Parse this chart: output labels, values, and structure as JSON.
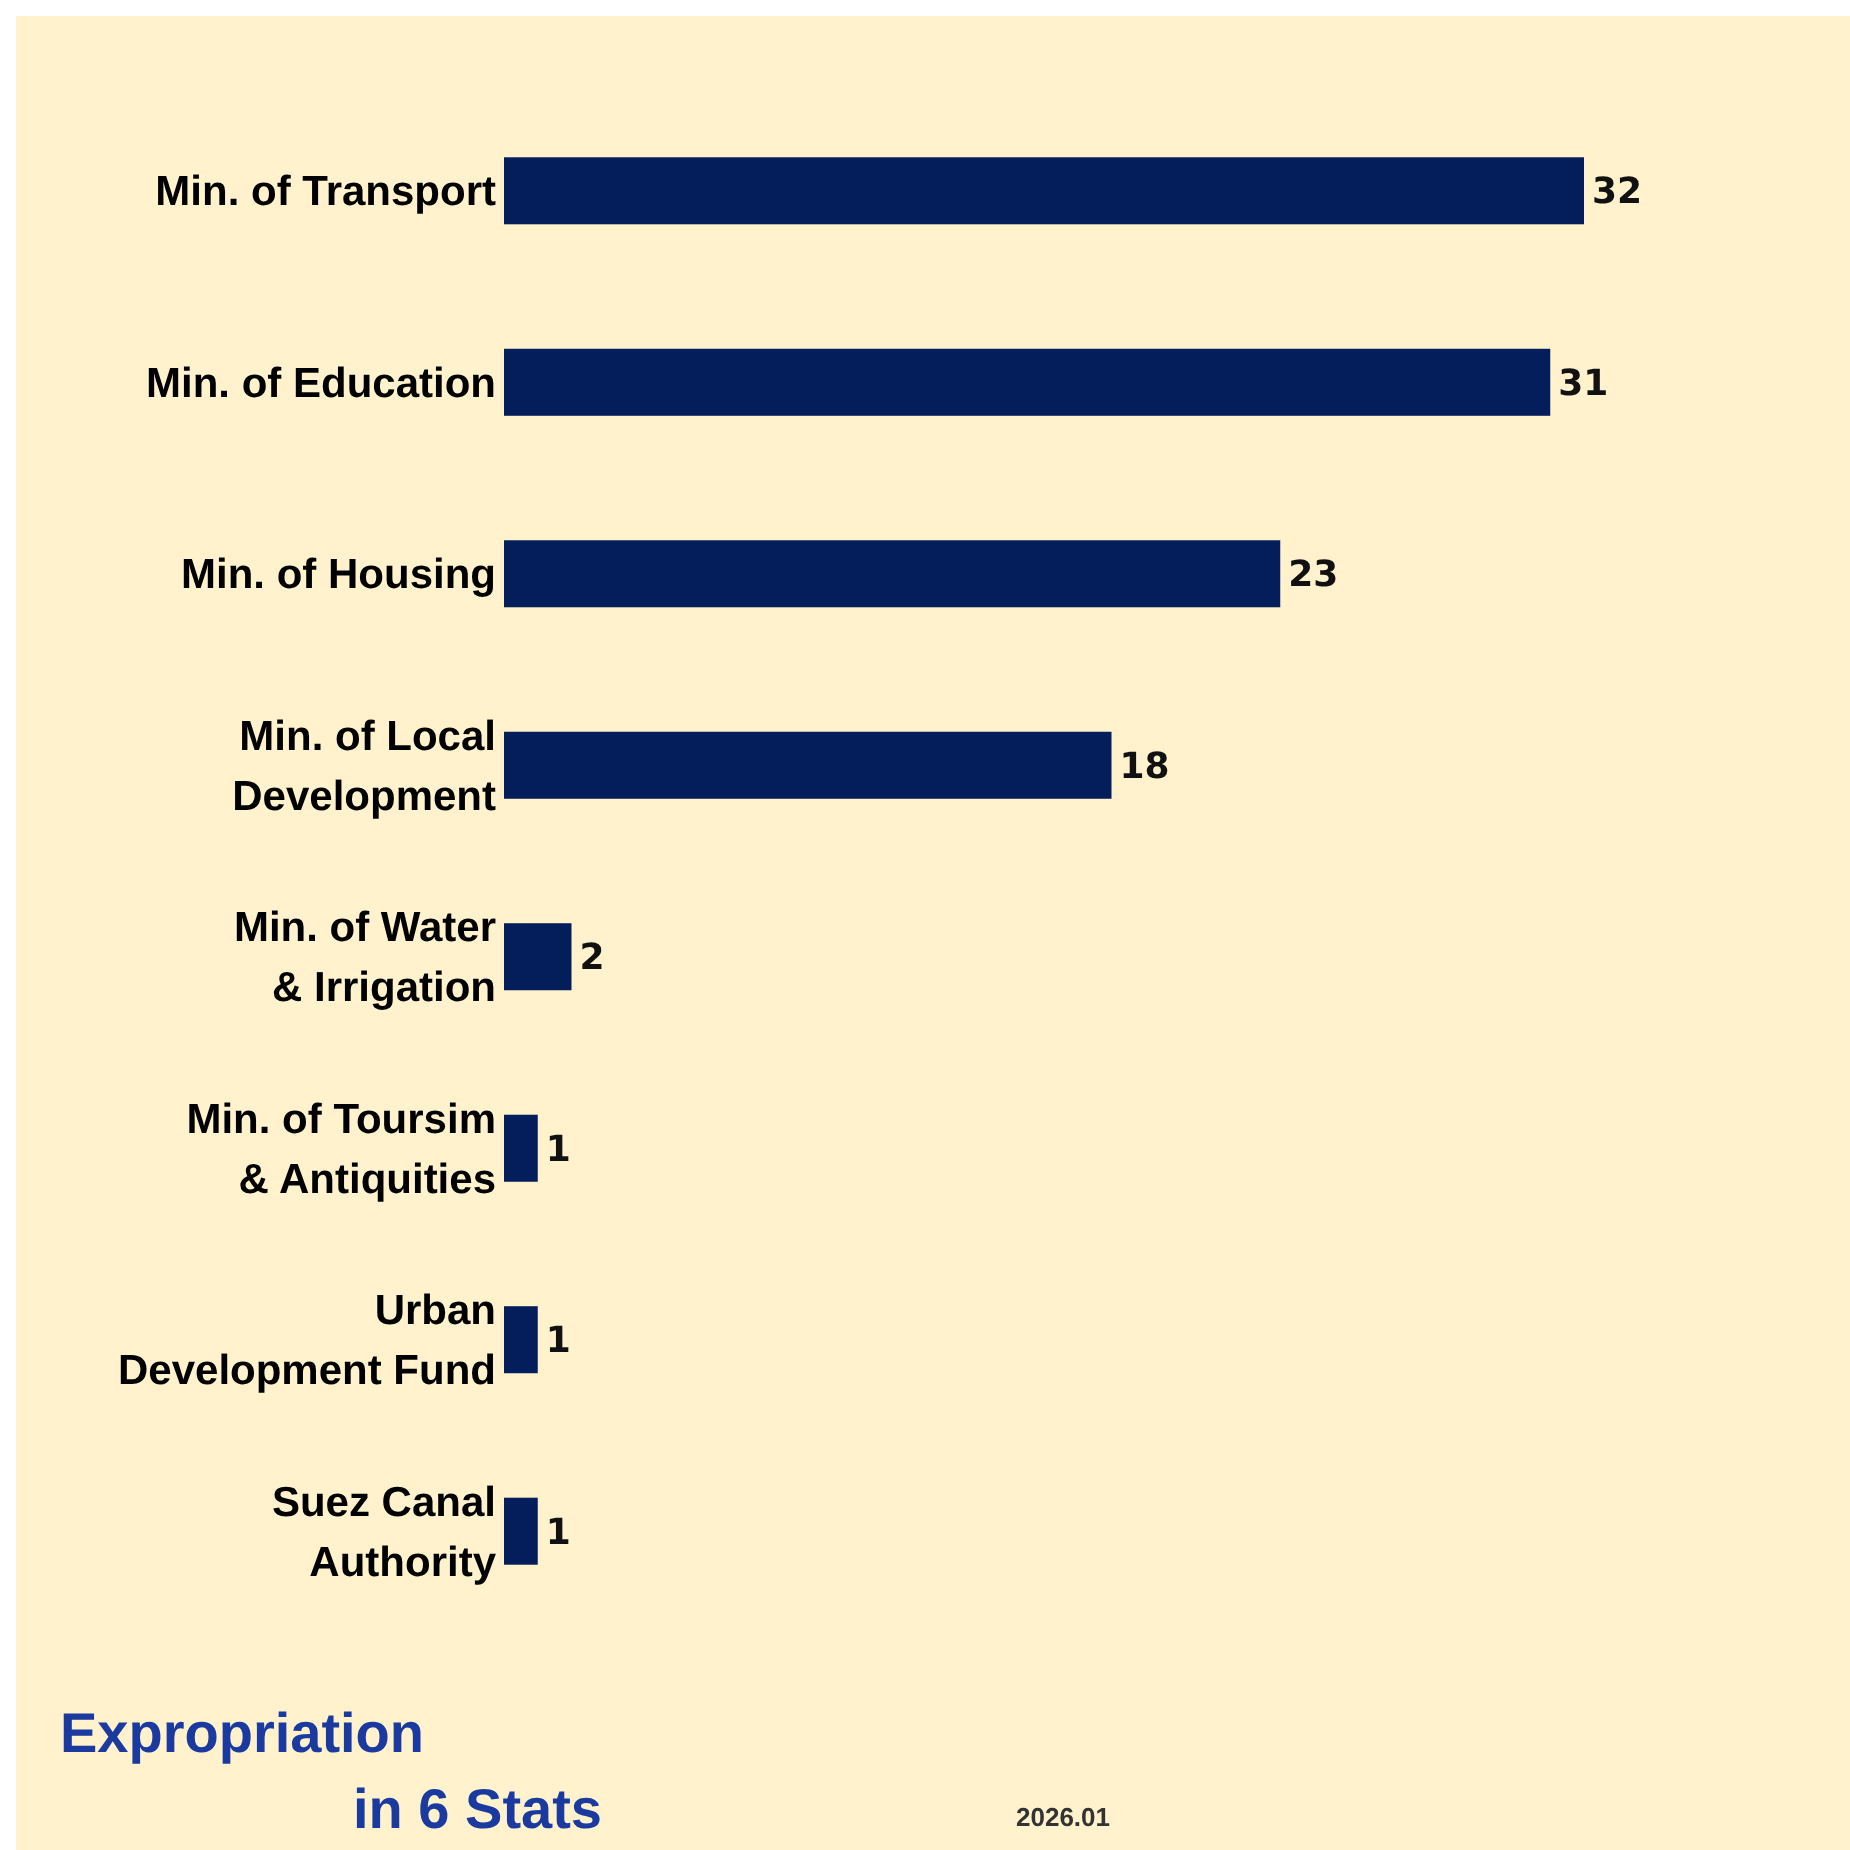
{
  "chart_data": {
    "type": "bar",
    "orientation": "horizontal",
    "title": "Expropriation in 6 Stats",
    "categories": [
      "Min. of Transport",
      "Min. of Education",
      "Min. of Housing",
      "Min. of Local Development",
      "Min. of Water & Irrigation",
      "Min. of Toursim & Antiquities",
      "Urban Development Fund",
      "Suez Canal Authority"
    ],
    "values": [
      32,
      31,
      23,
      18,
      2,
      1,
      1,
      1
    ],
    "color": "#041e5c",
    "data_labels": true,
    "tick_labels": "y",
    "annotations": [
      "2026.01"
    ]
  }
}
